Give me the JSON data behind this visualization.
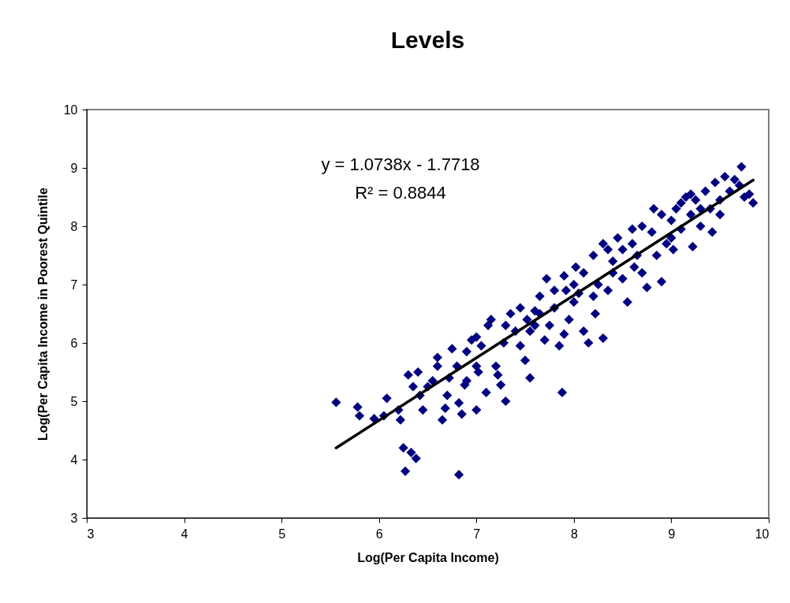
{
  "chart_data": {
    "type": "scatter",
    "title": "Levels",
    "xlabel": "Log(Per Capita Income)",
    "ylabel": "Log(Per Capita Income in Poorest Quintile",
    "xlim": [
      3,
      10
    ],
    "xticks": [
      3,
      4,
      5,
      6,
      7,
      8,
      9,
      10
    ],
    "ylim": [
      3,
      10
    ],
    "yticks": [
      3,
      4,
      5,
      6,
      7,
      8,
      9,
      10
    ],
    "grid": false,
    "marker": "diamond",
    "annotations": [
      "y = 1.0738x - 1.7718",
      "R² = 0.8844"
    ],
    "series": [
      {
        "color": "#000080",
        "x": [
          5.56,
          5.78,
          5.8,
          5.95,
          6.08,
          6.05,
          6.2,
          6.22,
          6.25,
          6.27,
          6.33,
          6.38,
          6.3,
          6.35,
          6.4,
          6.45,
          6.42,
          6.55,
          6.6,
          6.65,
          6.68,
          6.7,
          6.72,
          6.75,
          6.8,
          6.82,
          6.82,
          6.85,
          6.88,
          6.9,
          6.95,
          7.0,
          7.02,
          7.05,
          7.1,
          7.12,
          7.2,
          7.22,
          7.25,
          7.3,
          7.28,
          7.35,
          7.4,
          7.45,
          7.5,
          7.52,
          7.55,
          7.6,
          7.65,
          7.7,
          7.72,
          7.75,
          7.8,
          7.85,
          7.88,
          7.9,
          7.92,
          7.95,
          8.0,
          8.02,
          8.05,
          8.1,
          8.15,
          8.2,
          8.22,
          8.25,
          8.3,
          8.3,
          8.35,
          8.4,
          8.45,
          8.5,
          8.55,
          8.6,
          8.62,
          8.65,
          8.7,
          8.75,
          8.8,
          8.82,
          8.85,
          8.9,
          8.95,
          9.0,
          9.02,
          9.05,
          9.1,
          9.15,
          9.2,
          9.22,
          9.25,
          9.3,
          9.35,
          9.4,
          9.42,
          9.45,
          9.5,
          9.55,
          9.6,
          9.65,
          9.72,
          9.75,
          9.8,
          9.84,
          9.7,
          9.5,
          6.9,
          7.0,
          7.15,
          7.3,
          7.45,
          7.55,
          7.65,
          7.8,
          7.9,
          8.0,
          8.1,
          8.2,
          8.35,
          8.5,
          8.6,
          8.7,
          8.9,
          9.0,
          9.2,
          9.3,
          9.1,
          8.4,
          7.6,
          7.0,
          6.6,
          6.5
        ],
        "values": [
          4.98,
          4.9,
          4.75,
          4.7,
          5.05,
          4.75,
          4.85,
          4.68,
          4.2,
          3.8,
          4.12,
          4.02,
          5.45,
          5.25,
          5.5,
          4.85,
          5.1,
          5.35,
          5.6,
          4.68,
          4.88,
          5.1,
          5.4,
          5.9,
          5.6,
          3.74,
          4.97,
          4.78,
          5.28,
          5.85,
          6.05,
          4.85,
          5.5,
          5.95,
          5.15,
          6.3,
          5.6,
          5.45,
          5.28,
          5.0,
          6.0,
          6.5,
          6.2,
          5.95,
          5.7,
          6.4,
          5.4,
          6.55,
          6.8,
          6.05,
          7.1,
          6.3,
          6.6,
          5.95,
          5.15,
          6.15,
          6.9,
          6.4,
          6.7,
          7.3,
          6.85,
          6.2,
          6.0,
          7.5,
          6.5,
          7.0,
          6.08,
          7.7,
          6.9,
          7.4,
          7.8,
          7.1,
          6.7,
          7.95,
          7.3,
          7.5,
          7.2,
          6.95,
          7.9,
          8.3,
          7.5,
          7.05,
          7.7,
          8.1,
          7.6,
          8.3,
          7.95,
          8.5,
          8.2,
          7.65,
          8.45,
          8.0,
          8.6,
          8.3,
          7.9,
          8.75,
          8.45,
          8.85,
          8.6,
          8.8,
          9.02,
          8.5,
          8.55,
          8.4,
          8.7,
          8.2,
          5.35,
          6.1,
          6.4,
          6.3,
          6.6,
          6.2,
          6.5,
          6.9,
          7.15,
          7.0,
          7.2,
          6.8,
          7.6,
          7.6,
          7.7,
          8.0,
          8.2,
          7.8,
          8.55,
          8.3,
          8.4,
          7.2,
          6.3,
          5.6,
          5.75,
          5.25
        ]
      },
      {
        "type": "line",
        "color": "#000000",
        "line_style": "solid",
        "marker": "none",
        "x": [
          5.56,
          9.84
        ],
        "values": [
          4.2,
          8.79
        ]
      }
    ]
  }
}
